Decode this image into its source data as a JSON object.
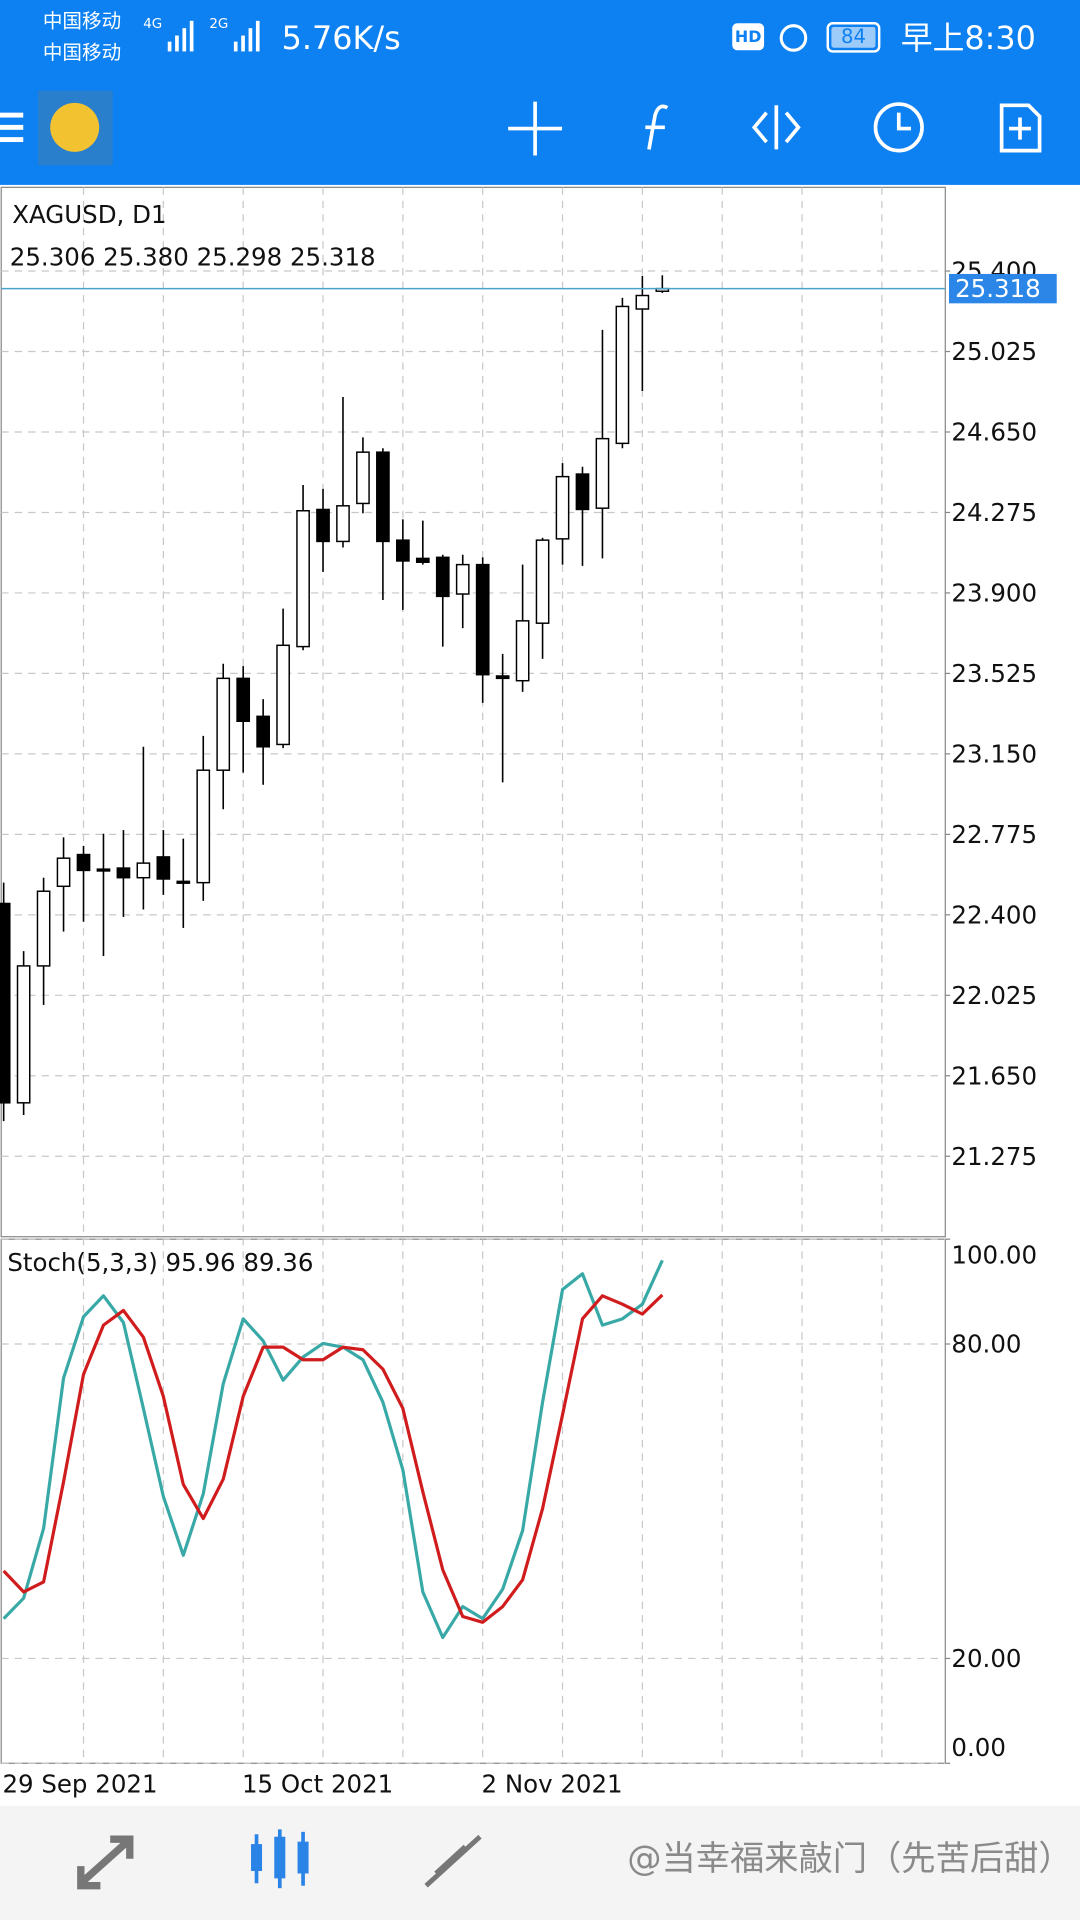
{
  "status_bar": {
    "carrier1": "中国移动",
    "carrier2": "中国移动",
    "net1": "4G",
    "net2": "2G",
    "speed": "5.76K/s",
    "hd": "HD",
    "battery": "84",
    "time": "早上8:30"
  },
  "chart_data": [
    {
      "type": "candlestick",
      "title": "XAGUSD, D1",
      "subtitle": "25.306 25.380 25.298 25.318",
      "categories": [
        "29 Sep 2021",
        null,
        null,
        null,
        null,
        null,
        null,
        null,
        null,
        null,
        null,
        null,
        "15 Oct 2021",
        null,
        null,
        null,
        null,
        null,
        null,
        null,
        null,
        null,
        null,
        null,
        "2 Nov 2021",
        null,
        null,
        null,
        null,
        null,
        null,
        null,
        null,
        null
      ],
      "open": [
        22.453,
        21.524,
        22.162,
        22.533,
        22.681,
        22.613,
        22.618,
        22.573,
        22.67,
        22.556,
        22.55,
        23.074,
        23.502,
        23.325,
        23.194,
        23.65,
        24.289,
        24.14,
        24.317,
        24.556,
        24.146,
        24.061,
        24.066,
        23.895,
        24.032,
        23.513,
        23.491,
        23.759,
        24.152,
        24.454,
        24.295,
        24.597,
        25.223,
        25.306
      ],
      "high": [
        22.55,
        22.231,
        22.573,
        22.761,
        22.721,
        22.778,
        22.795,
        23.183,
        22.795,
        22.755,
        23.234,
        23.57,
        23.559,
        23.405,
        23.827,
        24.403,
        24.385,
        24.813,
        24.625,
        24.574,
        24.243,
        24.237,
        24.078,
        24.078,
        24.066,
        23.616,
        24.032,
        24.157,
        24.505,
        24.488,
        25.126,
        25.275,
        25.377,
        25.38
      ],
      "low": [
        21.439,
        21.467,
        21.98,
        22.322,
        22.368,
        22.208,
        22.39,
        22.425,
        22.493,
        22.339,
        22.465,
        22.892,
        23.063,
        23.006,
        23.177,
        23.633,
        23.998,
        24.112,
        24.271,
        23.867,
        23.821,
        24.032,
        23.65,
        23.736,
        23.388,
        23.017,
        23.439,
        23.593,
        24.032,
        24.026,
        24.061,
        24.574,
        24.841,
        25.298
      ],
      "close": [
        21.524,
        22.162,
        22.51,
        22.664,
        22.607,
        22.607,
        22.573,
        22.641,
        22.567,
        22.55,
        23.074,
        23.502,
        23.302,
        23.183,
        23.656,
        24.283,
        24.14,
        24.306,
        24.556,
        24.14,
        24.049,
        24.043,
        23.884,
        24.032,
        23.519,
        23.502,
        23.77,
        24.146,
        24.442,
        24.289,
        24.619,
        25.235,
        25.286,
        25.318
      ],
      "ylim": [
        20.9,
        25.79
      ],
      "yticks": [
        {
          "value": 21.275,
          "label": "21.275"
        },
        {
          "value": 21.65,
          "label": "21.650"
        },
        {
          "value": 22.025,
          "label": "22.025"
        },
        {
          "value": 22.4,
          "label": "22.400"
        },
        {
          "value": 22.775,
          "label": "22.775"
        },
        {
          "value": 23.15,
          "label": "23.150"
        },
        {
          "value": 23.525,
          "label": "23.525"
        },
        {
          "value": 23.9,
          "label": "23.900"
        },
        {
          "value": 24.275,
          "label": "24.275"
        },
        {
          "value": 24.65,
          "label": "24.650"
        },
        {
          "value": 25.025,
          "label": "25.025"
        },
        {
          "value": 25.4,
          "label": "25.400"
        }
      ],
      "last_price": {
        "value": 25.318,
        "label": "25.318",
        "color": "#4aa3c8"
      },
      "grid": true
    },
    {
      "type": "line",
      "title": "Stoch(5,3,3) 95.96 89.36",
      "series": [
        {
          "color": "#38a9a6",
          "values": [
            27.6,
            31.5,
            44.8,
            73.5,
            85.2,
            89.2,
            84.1,
            67.7,
            50.9,
            39.7,
            51.4,
            72.4,
            84.8,
            80.6,
            73.1,
            77.5,
            80.1,
            79.4,
            77.0,
            68.9,
            56.0,
            32.7,
            24.0,
            29.9,
            27.6,
            33.2,
            44.4,
            68.9,
            90.4,
            93.4,
            83.6,
            84.8,
            87.6,
            95.96
          ]
        },
        {
          "color": "#d01c1c",
          "values": [
            36.7,
            32.7,
            34.6,
            53.7,
            74.2,
            83.6,
            86.4,
            81.3,
            70.0,
            53.2,
            46.7,
            54.2,
            70.0,
            79.4,
            79.4,
            77.0,
            77.0,
            79.4,
            78.9,
            75.2,
            67.7,
            51.8,
            36.9,
            28.0,
            26.9,
            29.9,
            35.0,
            48.6,
            66.5,
            84.8,
            89.2,
            87.6,
            85.7,
            89.36
          ]
        }
      ],
      "ylim": [
        0,
        100
      ],
      "yticks": [
        {
          "value": 0,
          "label": "0.00"
        },
        {
          "value": 20,
          "label": "20.00"
        },
        {
          "value": 80,
          "label": "80.00"
        },
        {
          "value": 100,
          "label": "100.00"
        }
      ],
      "grid": true
    }
  ],
  "watermark": "@当幸福来敲门（先苦后甜）"
}
